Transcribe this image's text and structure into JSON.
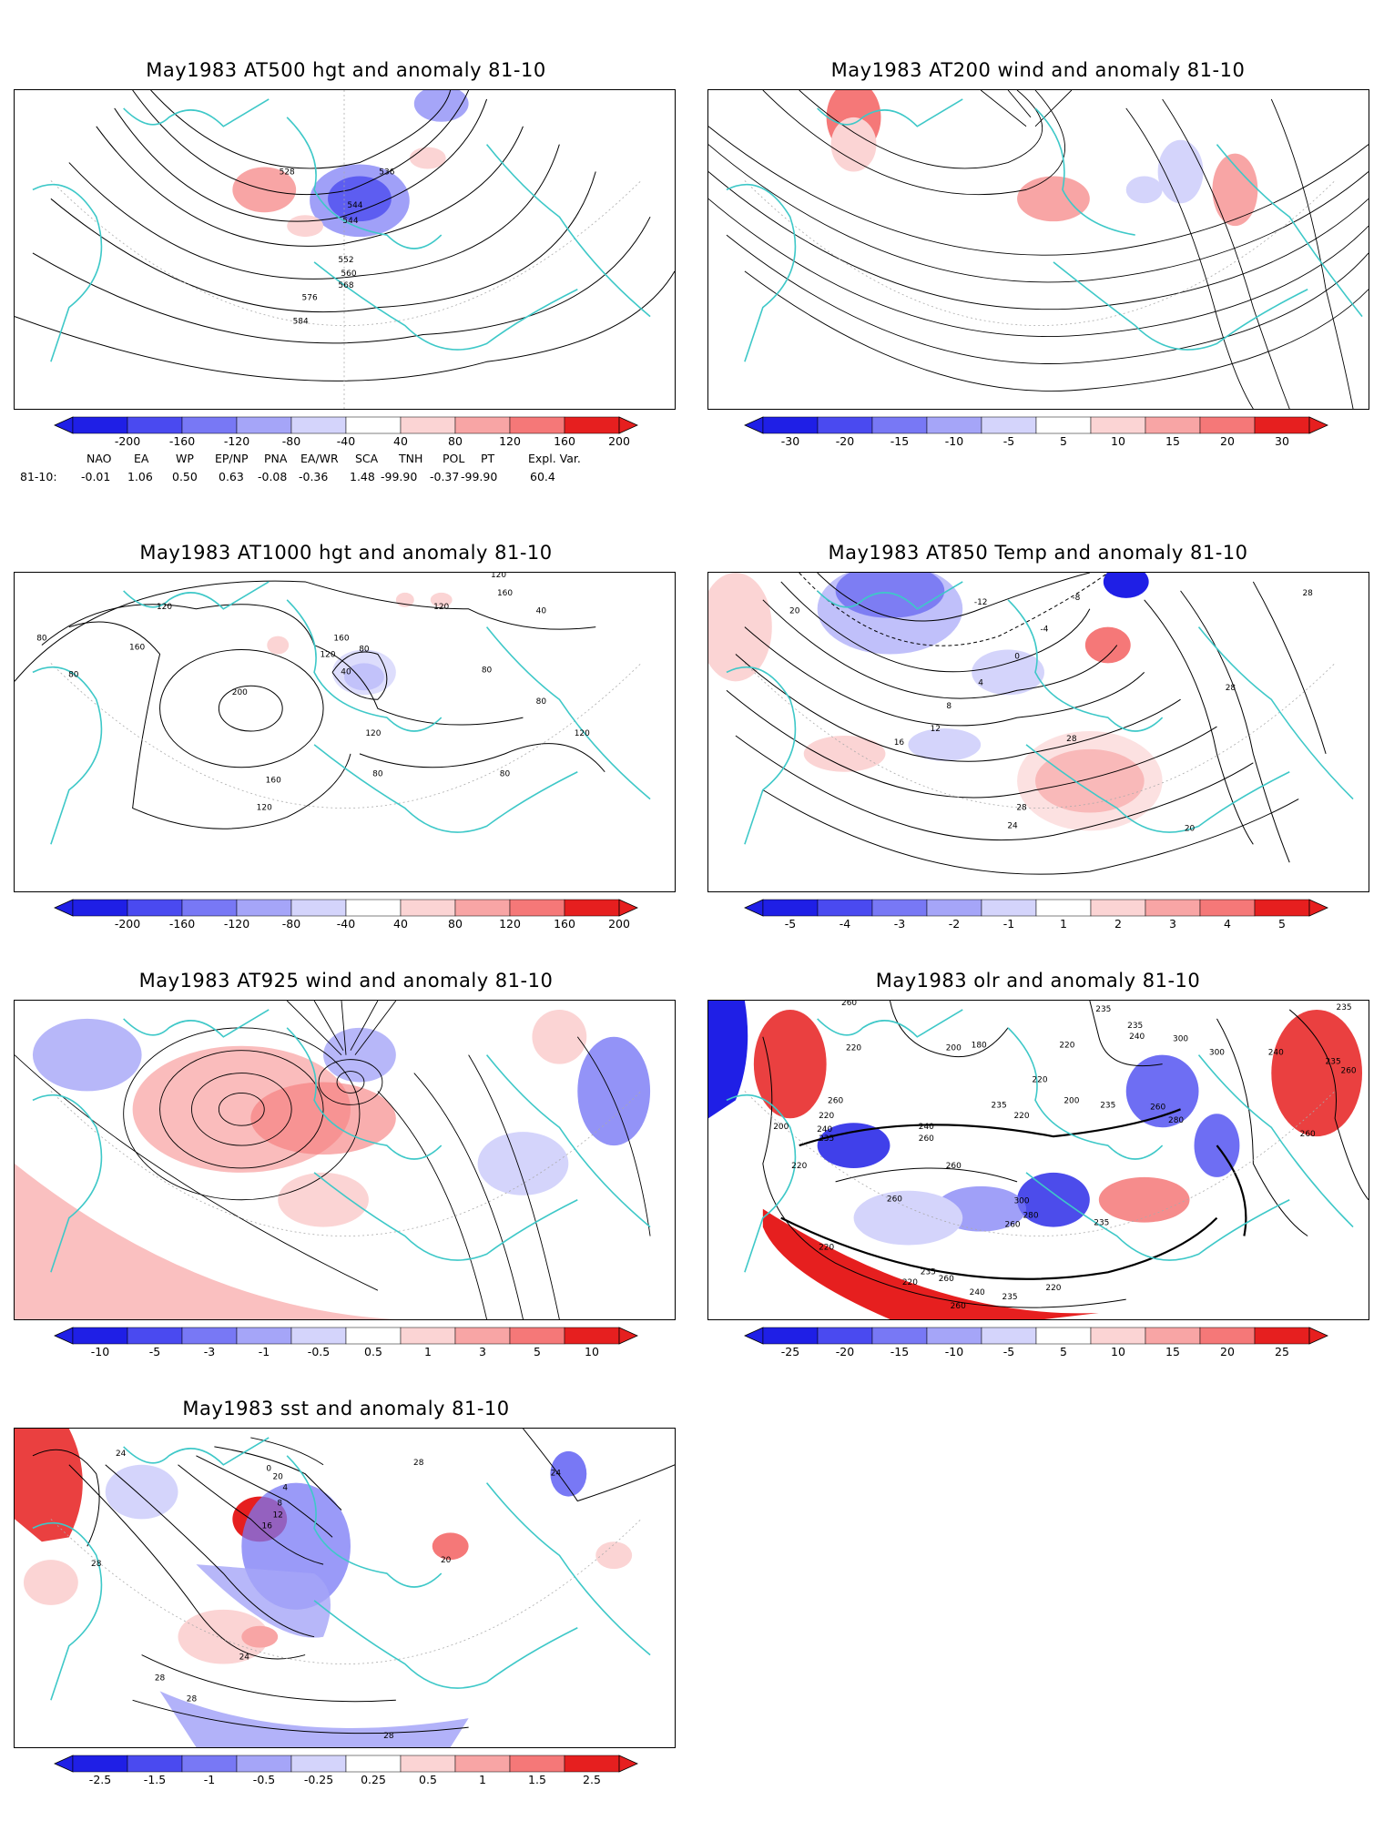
{
  "panels": [
    {
      "id": "p1",
      "title": "May1983 AT500 hgt and anomaly 81-10",
      "contour_labels": [
        "528",
        "536",
        "544",
        "544",
        "552",
        "560",
        "568",
        "576",
        "584"
      ],
      "colorbar": {
        "labels": [
          "-200",
          "-160",
          "-120",
          "-80",
          "-40",
          "40",
          "80",
          "120",
          "160",
          "200"
        ]
      }
    },
    {
      "id": "p2",
      "title": "May1983 AT200 wind and anomaly 81-10",
      "contour_labels": [],
      "colorbar": {
        "labels": [
          "-30",
          "-20",
          "-15",
          "-10",
          "-5",
          "5",
          "10",
          "15",
          "20",
          "30"
        ]
      }
    },
    {
      "id": "p3",
      "title": "May1983 AT1000 hgt and anomaly 81-10",
      "contour_labels": [
        "120",
        "80",
        "160",
        "200",
        "160",
        "120",
        "80",
        "120",
        "80",
        "40",
        "120",
        "160",
        "80",
        "80",
        "120",
        "120",
        "40",
        "160",
        "80",
        "80",
        "120"
      ],
      "colorbar": {
        "labels": [
          "-200",
          "-160",
          "-120",
          "-80",
          "-40",
          "40",
          "80",
          "120",
          "160",
          "200"
        ]
      }
    },
    {
      "id": "p4",
      "title": "May1983 AT850 Temp and anomaly 81-10",
      "contour_labels": [
        "20",
        "-12",
        "-8",
        "-4",
        "0",
        "4",
        "8",
        "12",
        "16",
        "28",
        "24",
        "28",
        "20",
        "28",
        "28"
      ],
      "colorbar": {
        "labels": [
          "-5",
          "-4",
          "-3",
          "-2",
          "-1",
          "1",
          "2",
          "3",
          "4",
          "5"
        ]
      }
    },
    {
      "id": "p5",
      "title": "May1983 AT925 wind and anomaly 81-10",
      "contour_labels": [],
      "colorbar": {
        "labels": [
          "-10",
          "-5",
          "-3",
          "-1",
          "-0.5",
          "0.5",
          "1",
          "3",
          "5",
          "10"
        ]
      }
    },
    {
      "id": "p6",
      "title": "May1983 olr and anomaly 81-10",
      "contour_labels": [
        "260",
        "220",
        "200",
        "180",
        "220",
        "235",
        "235",
        "240",
        "300",
        "235",
        "220",
        "200",
        "260",
        "220",
        "235",
        "240",
        "200",
        "235",
        "220",
        "260",
        "240",
        "235",
        "260",
        "280",
        "260",
        "220",
        "260",
        "260",
        "300",
        "280",
        "235",
        "260",
        "220",
        "260",
        "240",
        "235",
        "220",
        "220",
        "235",
        "260",
        "240",
        "300",
        "260",
        "235"
      ],
      "colorbar": {
        "labels": [
          "-25",
          "-20",
          "-15",
          "-10",
          "-5",
          "5",
          "10",
          "15",
          "20",
          "25"
        ]
      }
    },
    {
      "id": "p7",
      "title": "May1983 sst and anomaly 81-10",
      "contour_labels": [
        "24",
        "0",
        "4",
        "8",
        "12",
        "16",
        "20",
        "28",
        "28",
        "20",
        "24",
        "28",
        "28",
        "28",
        "24"
      ],
      "colorbar": {
        "labels": [
          "-2.5",
          "-1.5",
          "-1",
          "-0.5",
          "-0.25",
          "0.25",
          "0.5",
          "1",
          "1.5",
          "2.5"
        ]
      }
    }
  ],
  "teleconnections": {
    "headers": [
      "NAO",
      "EA",
      "WP",
      "EP/NP",
      "PNA",
      "EA/WR",
      "SCA",
      "TNH",
      "POL",
      "PT",
      "Expl. Var."
    ],
    "row_label": "81-10:",
    "values": [
      "-0.01",
      "1.06",
      "0.50",
      "0.63",
      "-0.08",
      "-0.36",
      "1.48",
      "-99.90",
      "-0.37",
      "-99.90",
      "60.4"
    ]
  },
  "colors": {
    "neg": [
      "#1f1fe6",
      "#4a4af0",
      "#7878f5",
      "#a5a5f8",
      "#d4d4fb"
    ],
    "pos": [
      "#fbd4d4",
      "#f8a5a5",
      "#f57878",
      "#f04a4a",
      "#e61f1f"
    ],
    "coast": "#3ec8c8",
    "contour": "#000000",
    "grid": "#aaaaaa"
  }
}
